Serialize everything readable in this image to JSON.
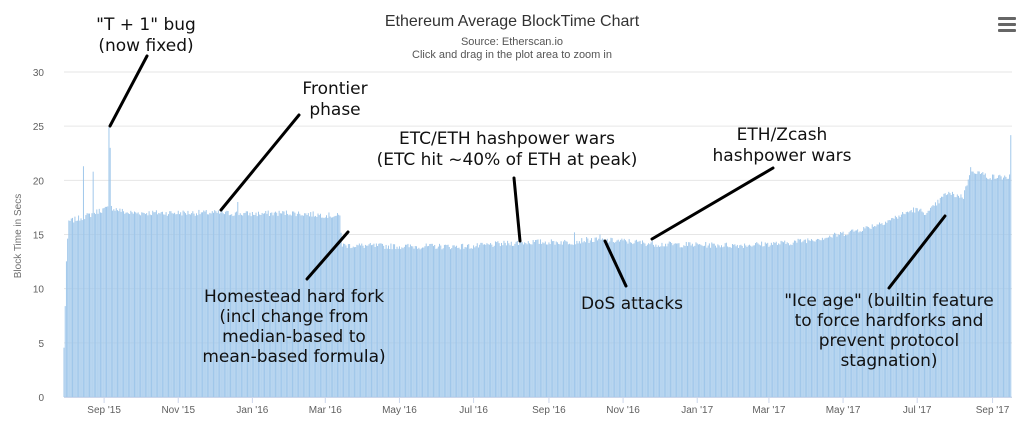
{
  "chart_data": {
    "type": "bar",
    "title": "Ethereum Average BlockTime Chart",
    "subtitle": "Source: Etherscan.io",
    "hint": "Click and drag in the plot area to zoom in",
    "ylabel": "Block Time in Secs",
    "ylim": [
      0,
      30
    ],
    "yticks": [
      "0",
      "5",
      "10",
      "15",
      "20",
      "25",
      "30"
    ],
    "xlim": [
      "2015-07-30",
      "2017-09-17"
    ],
    "xticks": [
      {
        "date": "2015-09-01",
        "label": "Sep '15"
      },
      {
        "date": "2015-11-01",
        "label": "Nov '15"
      },
      {
        "date": "2016-01-01",
        "label": "Jan '16"
      },
      {
        "date": "2016-03-01",
        "label": "Mar '16"
      },
      {
        "date": "2016-05-01",
        "label": "May '16"
      },
      {
        "date": "2016-07-01",
        "label": "Jul '16"
      },
      {
        "date": "2016-09-01",
        "label": "Sep '16"
      },
      {
        "date": "2016-11-01",
        "label": "Nov '16"
      },
      {
        "date": "2017-01-01",
        "label": "Jan '17"
      },
      {
        "date": "2017-03-01",
        "label": "Mar '17"
      },
      {
        "date": "2017-05-01",
        "label": "May '17"
      },
      {
        "date": "2017-07-01",
        "label": "Jul '17"
      },
      {
        "date": "2017-09-01",
        "label": "Sep '17"
      }
    ],
    "bar_color": "#9ec6ea",
    "series_profile": [
      {
        "date": "2015-07-30",
        "value": 4.5
      },
      {
        "date": "2015-08-01",
        "value": 12.5
      },
      {
        "date": "2015-08-03",
        "value": 16.2
      },
      {
        "date": "2015-08-20",
        "value": 16.8
      },
      {
        "date": "2015-08-28",
        "value": 17.2
      },
      {
        "date": "2015-09-07",
        "value": 17.5
      },
      {
        "date": "2015-09-20",
        "value": 17.0
      },
      {
        "date": "2015-10-15",
        "value": 17.0
      },
      {
        "date": "2015-12-01",
        "value": 17.0
      },
      {
        "date": "2016-01-01",
        "value": 16.9
      },
      {
        "date": "2016-02-01",
        "value": 17.0
      },
      {
        "date": "2016-03-13",
        "value": 16.7
      },
      {
        "date": "2016-03-15",
        "value": 14.0
      },
      {
        "date": "2016-05-01",
        "value": 13.9
      },
      {
        "date": "2016-07-01",
        "value": 13.9
      },
      {
        "date": "2016-07-20",
        "value": 14.1
      },
      {
        "date": "2016-08-15",
        "value": 14.3
      },
      {
        "date": "2016-09-20",
        "value": 14.3
      },
      {
        "date": "2016-10-01",
        "value": 14.5
      },
      {
        "date": "2016-11-01",
        "value": 14.4
      },
      {
        "date": "2016-12-01",
        "value": 14.1
      },
      {
        "date": "2017-02-01",
        "value": 14.0
      },
      {
        "date": "2017-03-15",
        "value": 14.2
      },
      {
        "date": "2017-04-20",
        "value": 14.8
      },
      {
        "date": "2017-05-20",
        "value": 15.6
      },
      {
        "date": "2017-06-10",
        "value": 16.4
      },
      {
        "date": "2017-06-28",
        "value": 17.3
      },
      {
        "date": "2017-07-10",
        "value": 17.0
      },
      {
        "date": "2017-07-25",
        "value": 18.8
      },
      {
        "date": "2017-08-08",
        "value": 18.5
      },
      {
        "date": "2017-08-14",
        "value": 21.0
      },
      {
        "date": "2017-08-30",
        "value": 20.3
      },
      {
        "date": "2017-09-15",
        "value": 20.3
      },
      {
        "date": "2017-09-16",
        "value": 24.0
      }
    ],
    "spikes": [
      {
        "date": "2015-08-15",
        "value": 21.3
      },
      {
        "date": "2015-08-23",
        "value": 20.8
      },
      {
        "date": "2015-09-05",
        "value": 24.9
      },
      {
        "date": "2015-09-06",
        "value": 23.0
      },
      {
        "date": "2015-12-20",
        "value": 18.0
      },
      {
        "date": "2016-09-22",
        "value": 15.2
      },
      {
        "date": "2016-10-13",
        "value": 15.0
      }
    ],
    "annotations": [
      {
        "id": "t-plus-1",
        "lines": [
          "\"T + 1\" bug",
          "(now fixed)"
        ]
      },
      {
        "id": "frontier",
        "lines": [
          "Frontier",
          "phase"
        ]
      },
      {
        "id": "homestead",
        "lines": [
          "Homestead hard fork",
          "(incl change from",
          "median-based to",
          "mean-based formula)"
        ]
      },
      {
        "id": "etc-eth",
        "lines": [
          "ETC/ETH hashpower wars",
          "(ETC hit ~40% of ETH at peak)"
        ]
      },
      {
        "id": "eth-zcash",
        "lines": [
          "ETH/Zcash",
          "hashpower wars"
        ]
      },
      {
        "id": "dos",
        "lines": [
          "DoS attacks"
        ]
      },
      {
        "id": "ice-age",
        "lines": [
          "\"Ice age\" (builtin feature",
          "to force hardforks and",
          "prevent protocol",
          "stagnation)"
        ]
      }
    ]
  },
  "toolbar": {
    "menu_icon": "hamburger-menu-icon"
  }
}
